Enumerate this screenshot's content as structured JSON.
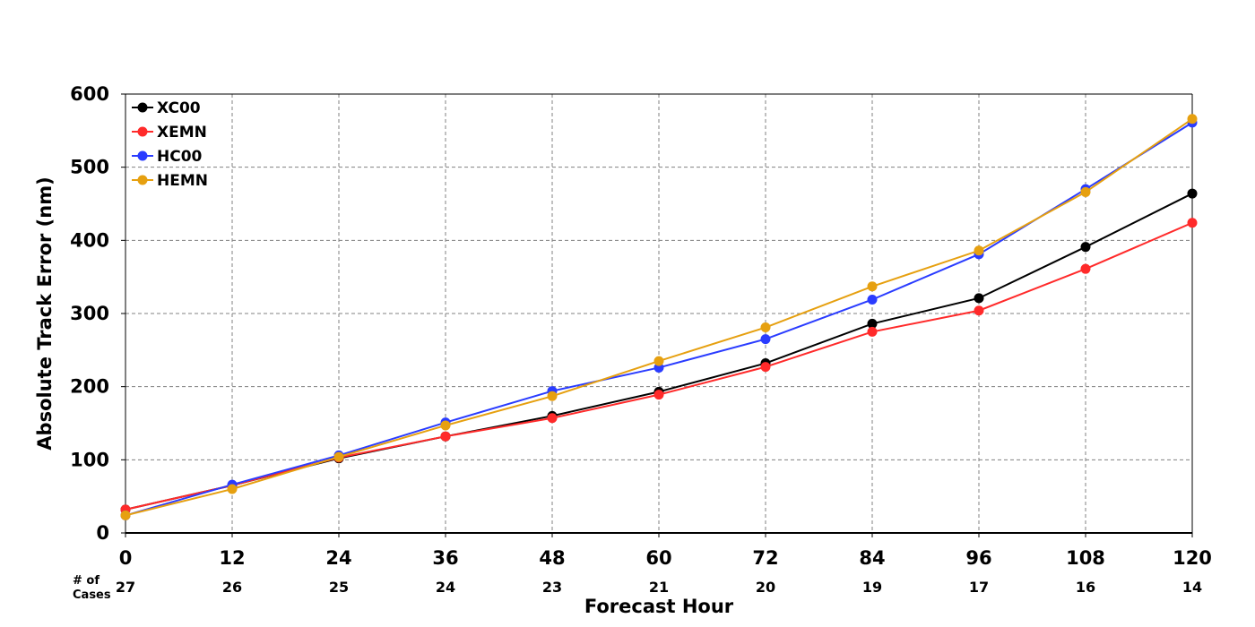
{
  "chart_data": {
    "type": "line",
    "x": [
      0,
      12,
      24,
      36,
      48,
      60,
      72,
      84,
      96,
      108,
      120
    ],
    "xlim": [
      0,
      120
    ],
    "ylim": [
      0,
      600
    ],
    "yticks": [
      0,
      100,
      200,
      300,
      400,
      500,
      600
    ],
    "xlabel": "Forecast Hour",
    "ylabel": "Absolute Track Error (nm)",
    "cases_label_line1": "# of",
    "cases_label_line2": "Cases",
    "cases": [
      27,
      26,
      25,
      24,
      23,
      21,
      20,
      19,
      17,
      16,
      14
    ],
    "grid": true,
    "legend_position": "top-left",
    "series": [
      {
        "name": "XC00",
        "color": "#000000",
        "values": [
          32,
          65,
          102,
          132,
          160,
          193,
          232,
          286,
          321,
          391,
          464
        ]
      },
      {
        "name": "XEMN",
        "color": "#ff2a2a",
        "values": [
          32,
          65,
          103,
          132,
          157,
          189,
          227,
          275,
          304,
          361,
          424
        ]
      },
      {
        "name": "HC00",
        "color": "#2a3cff",
        "values": [
          24,
          66,
          106,
          151,
          194,
          226,
          265,
          319,
          381,
          470,
          561
        ]
      },
      {
        "name": "HEMN",
        "color": "#e6a010",
        "values": [
          24,
          60,
          104,
          147,
          187,
          235,
          281,
          337,
          386,
          466,
          566
        ]
      }
    ]
  }
}
